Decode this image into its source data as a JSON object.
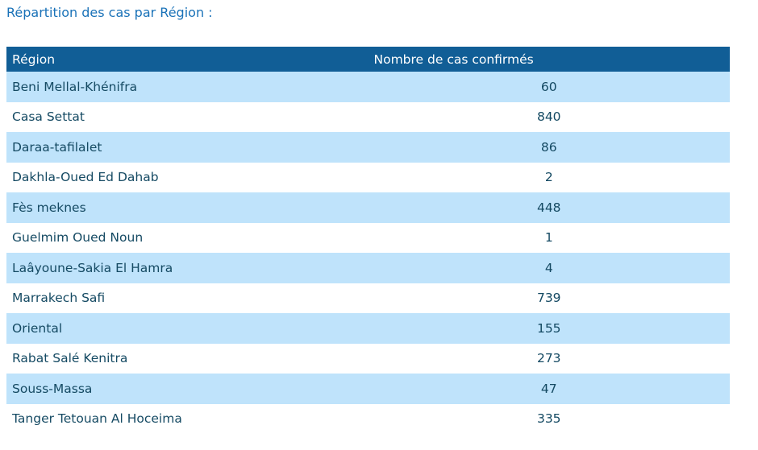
{
  "page": {
    "title": "Répartition des cas par Région :"
  },
  "colors": {
    "title_text": "#1a72b8",
    "header_background": "#115e96",
    "header_text": "#ffffff",
    "row_alt_background": "#bfe3fb",
    "row_background": "#ffffff",
    "cell_text": "#154a63"
  },
  "table": {
    "columns": [
      "Région",
      "Nombre de cas confirmés"
    ],
    "rows": [
      {
        "region": "Beni Mellal-Khénifra",
        "cases": "60"
      },
      {
        "region": "Casa Settat",
        "cases": "840"
      },
      {
        "region": "Daraa-tafilalet",
        "cases": "86"
      },
      {
        "region": "Dakhla-Oued Ed Dahab",
        "cases": "2"
      },
      {
        "region": "Fès meknes",
        "cases": "448"
      },
      {
        "region": "Guelmim Oued Noun",
        "cases": "1"
      },
      {
        "region": "Laâyoune-Sakia El Hamra",
        "cases": "4"
      },
      {
        "region": "Marrakech Safi",
        "cases": "739"
      },
      {
        "region": "Oriental",
        "cases": "155"
      },
      {
        "region": "Rabat Salé Kenitra",
        "cases": "273"
      },
      {
        "region": "Souss-Massa",
        "cases": "47"
      },
      {
        "region": "Tanger Tetouan Al Hoceima",
        "cases": "335"
      }
    ]
  }
}
